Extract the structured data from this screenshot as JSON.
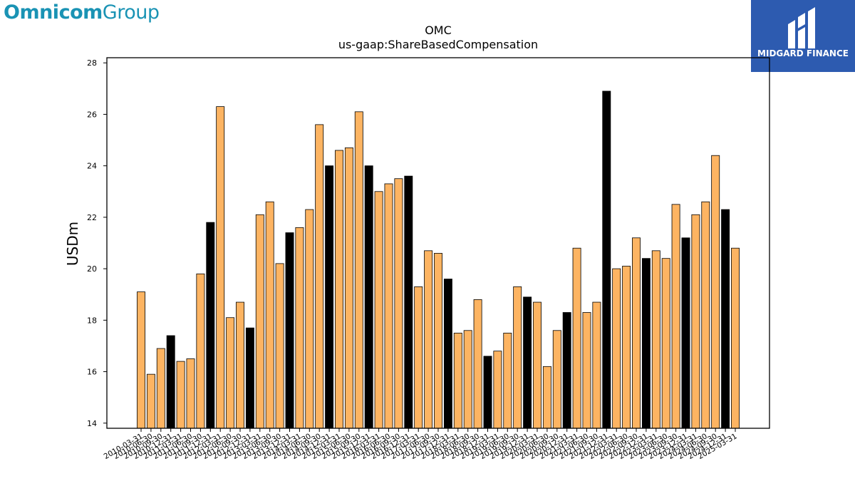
{
  "header": {
    "brand_left": {
      "bold": "Omnicom",
      "light": "Group"
    },
    "brand_right": {
      "text": "MIDGARD FINANCE"
    }
  },
  "colors": {
    "regular_bar": "#fdb462",
    "highlight_bar": "#000000",
    "brand_teal": "#1a93b4",
    "brand_blue": "#2d5bb0"
  },
  "chart_data": {
    "type": "bar",
    "title": "OMC",
    "subtitle": "us-gaap:ShareBasedCompensation",
    "xlabel": "",
    "ylabel": "USDm",
    "ylim": [
      13.8,
      28.2
    ],
    "yticks": [
      14,
      16,
      18,
      20,
      22,
      24,
      26,
      28
    ],
    "grid": false,
    "legend": "none",
    "categories": [
      "2010-03-31",
      "2010-06-30",
      "2010-09-30",
      "2010-12-31",
      "2011-03-31",
      "2011-06-30",
      "2011-09-30",
      "2011-12-31",
      "2012-03-31",
      "2012-06-30",
      "2012-09-30",
      "2012-12-31",
      "2013-03-31",
      "2013-06-30",
      "2013-09-30",
      "2013-12-31",
      "2014-03-31",
      "2014-06-30",
      "2014-09-30",
      "2014-12-31",
      "2015-03-31",
      "2015-06-30",
      "2015-09-30",
      "2015-12-31",
      "2016-03-31",
      "2016-06-30",
      "2016-09-30",
      "2016-12-31",
      "2017-03-31",
      "2017-06-30",
      "2017-09-30",
      "2017-12-31",
      "2018-03-31",
      "2018-06-30",
      "2018-09-30",
      "2018-12-31",
      "2019-03-31",
      "2019-06-30",
      "2019-09-30",
      "2019-12-31",
      "2020-03-31",
      "2020-06-30",
      "2020-09-30",
      "2020-12-31",
      "2021-03-31",
      "2021-06-30",
      "2021-09-30",
      "2021-12-31",
      "2022-03-31",
      "2022-06-30",
      "2022-09-30",
      "2022-12-31",
      "2023-03-31",
      "2023-06-30",
      "2023-09-30",
      "2023-12-31",
      "2024-03-31",
      "2024-06-30",
      "2024-09-30",
      "2024-12-31",
      "2025-03-31"
    ],
    "tick_labels": [
      "2010-03-31",
      "2010-06-30",
      "2010-09-30",
      "2010-12-31",
      "2011-03-31",
      "2011-06-30",
      "2011-09-30",
      "2011-12-31",
      "2012-03-31",
      "2012-06-30",
      "2012-09-30",
      "2012-12-31",
      "2013-03-31",
      "2013-06-30",
      "2013-09-30",
      "2013-12-31",
      "2014-03-31",
      "2014-06-30",
      "2014-09-30",
      "2014-12-31",
      "2015-03-31",
      "2015-06-30",
      "2015-09-30",
      "2015-12-31",
      "2016-03-31",
      "2016-06-30",
      "2016-09-30",
      "2016-12-31",
      "2017-03-31",
      "2017-06-30",
      "2017-09-30",
      "2017-12-31",
      "2018-03-31",
      "2018-06-30",
      "2018-09-30",
      "2018-12-31",
      "2019-03-31",
      "2019-06-30",
      "2019-09-30",
      "2019-12-31",
      "2020-03-31",
      "2020-06-30",
      "2020-09-30",
      "2020-12-31",
      "2021-03-31",
      "2021-06-30",
      "2021-09-30",
      "2021-12-31",
      "2022-03-31",
      "2022-06-30",
      "2022-09-30",
      "2022-12-31",
      "2023-03-31",
      "2023-06-30",
      "2023-09-30",
      "2023-12-31",
      "2024-03-31",
      "2024-06-30",
      "2024-09-30",
      "2024-12-31",
      "2025-03-31"
    ],
    "values": [
      19.1,
      15.9,
      16.9,
      17.4,
      16.4,
      16.5,
      19.8,
      21.8,
      26.3,
      18.1,
      18.7,
      17.7,
      22.1,
      22.6,
      20.2,
      21.4,
      21.6,
      22.3,
      25.6,
      24.0,
      24.6,
      24.7,
      26.1,
      24.0,
      23.0,
      23.3,
      23.5,
      23.6,
      19.3,
      20.7,
      20.6,
      19.6,
      17.5,
      17.6,
      18.8,
      16.6,
      16.8,
      17.5,
      19.3,
      18.9,
      18.7,
      16.2,
      17.6,
      18.3,
      20.8,
      18.3,
      18.7,
      26.9,
      20.0,
      20.1,
      21.2,
      20.4,
      20.7,
      20.4,
      22.5,
      21.2,
      22.1,
      22.6,
      24.4,
      22.3,
      20.8
    ],
    "highlighted": [
      false,
      false,
      false,
      true,
      false,
      false,
      false,
      true,
      false,
      false,
      false,
      true,
      false,
      false,
      false,
      true,
      false,
      false,
      false,
      true,
      false,
      false,
      false,
      true,
      false,
      false,
      false,
      true,
      false,
      false,
      false,
      true,
      false,
      false,
      false,
      true,
      false,
      false,
      false,
      true,
      false,
      false,
      false,
      true,
      false,
      false,
      false,
      true,
      false,
      false,
      false,
      true,
      false,
      false,
      false,
      true,
      false,
      false,
      false,
      true,
      false
    ]
  }
}
